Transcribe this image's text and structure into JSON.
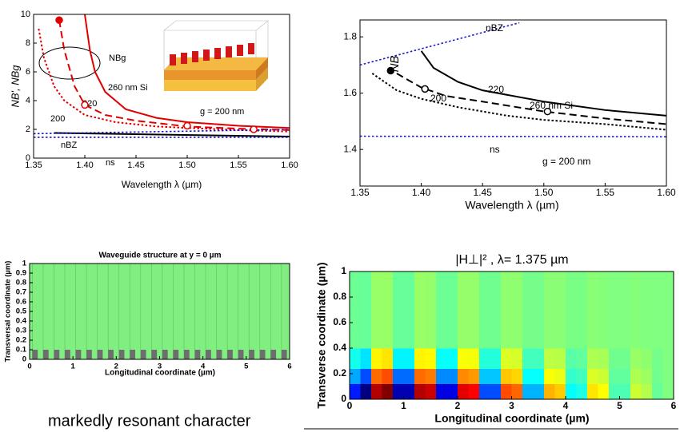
{
  "caption": "markedly resonant character",
  "chart_data": [
    {
      "type": "line",
      "x_label": "Wavelength λ (µm)",
      "y_label": "NB', NBg",
      "xlim": [
        1.35,
        1.6
      ],
      "ylim": [
        0,
        10
      ],
      "xticks": [
        1.35,
        {
          "value": 1.4,
          "label": "1.40"
        },
        1.45,
        {
          "value": 1.5,
          "label": "1.50"
        },
        1.55,
        {
          "value": 1.6,
          "label": "1.60"
        }
      ],
      "yticks": [
        0,
        2,
        4,
        6,
        8,
        10
      ],
      "annotations": [
        "NBg",
        "g = 200 nm"
      ],
      "series": [
        {
          "name": "260 nm Si",
          "color": "#e00000",
          "style": "solid",
          "x": [
            1.4,
            1.405,
            1.41,
            1.42,
            1.44,
            1.47,
            1.5,
            1.55,
            1.6
          ],
          "values": [
            10,
            7.5,
            6,
            4.6,
            3.4,
            2.8,
            2.5,
            2.25,
            2.1
          ]
        },
        {
          "name": "220",
          "color": "#e00000",
          "style": "dashed",
          "x": [
            1.375,
            1.38,
            1.39,
            1.4,
            1.42,
            1.45,
            1.5,
            1.55,
            1.6
          ],
          "values": [
            9.6,
            7.5,
            5,
            3.7,
            3,
            2.6,
            2.2,
            2.05,
            1.95
          ]
        },
        {
          "name": "200",
          "color": "#e00000",
          "style": "dotted",
          "x": [
            1.355,
            1.36,
            1.37,
            1.38,
            1.4,
            1.43,
            1.47,
            1.5,
            1.55,
            1.6
          ],
          "values": [
            9,
            7,
            5,
            4,
            3,
            2.5,
            2.2,
            2.1,
            1.95,
            1.85
          ]
        },
        {
          "color": "#000000",
          "style": "solid",
          "x": [
            1.37,
            1.6
          ],
          "values": [
            1.75,
            1.5
          ]
        },
        {
          "name": "nBZ",
          "color": "#1a1acc",
          "style": "dotted",
          "x": [
            1.35,
            1.6
          ],
          "values": [
            1.7,
            1.99
          ]
        },
        {
          "name": "ns",
          "color": "#1a1acc",
          "style": "dotted",
          "x": [
            1.35,
            1.6
          ],
          "values": [
            1.45,
            1.45
          ]
        },
        {
          "color": "#e00000",
          "style": "filled-marker",
          "x": [
            1.375
          ],
          "values": [
            9.6
          ]
        },
        {
          "color": "#e00000",
          "style": "open-marker",
          "x": [
            1.4,
            1.5,
            1.565
          ],
          "values": [
            3.7,
            2.25,
            2.0
          ]
        }
      ]
    },
    {
      "type": "line",
      "x_label": "Wavelength λ (µm)",
      "y_label": "NB",
      "xlim": [
        1.35,
        1.6
      ],
      "ylim": [
        1.27,
        1.86
      ],
      "xticks": [
        1.35,
        {
          "value": 1.4,
          "label": "1.40"
        },
        1.45,
        {
          "value": 1.5,
          "label": "1.50"
        },
        1.55,
        {
          "value": 1.6,
          "label": "1.60"
        }
      ],
      "yticks": [
        1.4,
        1.6,
        1.8
      ],
      "annotations": [
        "g = 200 nm"
      ],
      "series": [
        {
          "name": "260 nm Si",
          "color": "#000000",
          "style": "solid",
          "x": [
            1.4,
            1.41,
            1.43,
            1.45,
            1.5,
            1.55,
            1.6
          ],
          "values": [
            1.75,
            1.69,
            1.64,
            1.61,
            1.57,
            1.54,
            1.52
          ]
        },
        {
          "name": "220",
          "color": "#000000",
          "style": "dashed",
          "x": [
            1.38,
            1.4,
            1.42,
            1.45,
            1.5,
            1.55,
            1.6
          ],
          "values": [
            1.67,
            1.62,
            1.59,
            1.57,
            1.535,
            1.51,
            1.49
          ]
        },
        {
          "name": "200",
          "color": "#000000",
          "style": "dotted",
          "x": [
            1.36,
            1.38,
            1.4,
            1.43,
            1.47,
            1.5,
            1.55,
            1.6
          ],
          "values": [
            1.67,
            1.61,
            1.58,
            1.55,
            1.52,
            1.505,
            1.49,
            1.47
          ]
        },
        {
          "name": "nBZ",
          "color": "#1a1acc",
          "style": "dotted",
          "x": [
            1.35,
            1.48
          ],
          "values": [
            1.7,
            1.85
          ]
        },
        {
          "name": "ns",
          "color": "#1a1acc",
          "style": "dotted",
          "x": [
            1.35,
            1.6
          ],
          "values": [
            1.447,
            1.445
          ]
        },
        {
          "color": "#000000",
          "style": "filled-marker",
          "x": [
            1.375
          ],
          "values": [
            1.68
          ]
        },
        {
          "color": "#000000",
          "style": "open-marker",
          "x": [
            1.403,
            1.503
          ],
          "values": [
            1.615,
            1.535
          ]
        }
      ]
    },
    {
      "type": "structure",
      "title": "Waveguide structure at y = 0 µm",
      "x_label": "Longitudinal coordinate (µm)",
      "y_label": "Transversal coordinate (µm)",
      "xlim": [
        0,
        6
      ],
      "ylim": [
        0,
        1
      ],
      "xticks": [
        0,
        1,
        2,
        3,
        4,
        5,
        6
      ],
      "yticks": [
        0,
        0.1,
        0.2,
        0.3,
        0.4,
        0.5,
        0.6,
        0.7,
        0.8,
        0.9,
        1
      ],
      "background": "#80ee80",
      "color": "#6e6e6e",
      "width": 0.125,
      "height": 0.1,
      "x": [
        0.0625,
        0.3125,
        0.5625,
        0.8125,
        1.0625,
        1.3125,
        1.5625,
        1.8125,
        2.0625,
        2.3125,
        2.5625,
        2.8125,
        3.0625,
        3.3125,
        3.5625,
        3.8125,
        4.0625,
        4.3125,
        4.5625,
        4.8125,
        5.0625,
        5.3125,
        5.5625,
        5.8125
      ]
    },
    {
      "type": "heatmap",
      "title": "|H⊥|² , λ= 1.375 µm",
      "x_label": "Longitudinal coordinate (µm)",
      "y_label": "Transverse coordinate (µm)",
      "xlim": [
        0,
        6
      ],
      "ylim": [
        0,
        1
      ],
      "xticks": [
        0,
        1,
        2,
        3,
        4,
        5,
        6
      ],
      "yticks": [
        0,
        0.2,
        0.4,
        0.6,
        0.8,
        1
      ],
      "colormap": "jet",
      "zlim": [
        -1,
        1
      ],
      "x_edges": [
        0,
        0.2,
        0.4,
        0.6,
        0.8,
        1,
        1.2,
        1.4,
        1.6,
        1.8,
        2,
        2.2,
        2.4,
        2.6,
        2.8,
        3,
        3.2,
        3.4,
        3.6,
        3.8,
        4,
        4.2,
        4.4,
        4.6,
        4.8,
        5,
        5.2,
        5.4,
        5.6,
        5.8,
        6
      ],
      "y_edges": [
        0,
        0.12,
        0.24,
        0.4,
        1
      ],
      "z": [
        [
          -0.7,
          -1,
          0.9,
          1,
          -0.9,
          -0.9,
          0.9,
          0.85,
          -0.8,
          -0.8,
          0.8,
          0.75,
          -0.6,
          -0.6,
          0.6,
          0.55,
          -0.4,
          -0.4,
          0.4,
          0.35,
          -0.25,
          -0.2,
          0.3,
          0.25,
          -0.1,
          -0.1,
          0.15,
          0.1,
          -0.05,
          0
        ],
        [
          -0.42,
          -0.6,
          0.54,
          0.6,
          -0.54,
          -0.54,
          0.54,
          0.51,
          -0.48,
          -0.48,
          0.48,
          0.45,
          -0.36,
          -0.36,
          0.36,
          0.33,
          -0.24,
          -0.24,
          0.24,
          0.21,
          -0.15,
          -0.12,
          0.18,
          0.15,
          -0.06,
          -0.06,
          0.09,
          0.06,
          -0.03,
          0
        ],
        [
          -0.21,
          -0.3,
          0.27,
          0.3,
          -0.27,
          -0.27,
          0.27,
          0.26,
          -0.24,
          -0.24,
          0.24,
          0.23,
          -0.18,
          -0.18,
          0.18,
          0.17,
          -0.12,
          -0.12,
          0.12,
          0.11,
          -0.08,
          -0.06,
          0.09,
          0.08,
          -0.03,
          -0.03,
          0.05,
          0.03,
          -0.02,
          0
        ],
        [
          -0.04,
          -0.05,
          0.05,
          0.05,
          -0.05,
          -0.05,
          0.05,
          0.04,
          -0.04,
          -0.04,
          0.04,
          0.04,
          -0.03,
          -0.03,
          0.03,
          0.03,
          -0.02,
          -0.02,
          0.02,
          0.02,
          -0.01,
          -0.01,
          0.02,
          0.01,
          0,
          0,
          0.01,
          0,
          0,
          0
        ]
      ]
    }
  ]
}
